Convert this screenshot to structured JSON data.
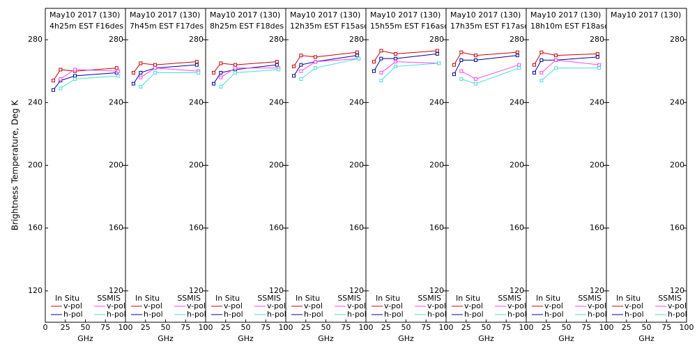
{
  "chart_data": [
    {
      "type": "line",
      "title": "May10 2017 (130)",
      "subtitle": "4h25m EST F16des",
      "ylabel": "Brightness Temperature, Deg K",
      "xlabel": "GHz",
      "xlim": [
        0,
        100
      ],
      "xticks": [
        0,
        25,
        50,
        75,
        100
      ],
      "ylim": [
        100,
        300
      ],
      "yticks": [
        120,
        160,
        200,
        240,
        280
      ],
      "groups": [
        "In Situ",
        "SSMIS"
      ],
      "series": [
        {
          "name": "v-pol",
          "color": "#cc0000",
          "x": [
            10,
            19,
            37,
            89
          ],
          "values": [
            254,
            261,
            260,
            262
          ]
        },
        {
          "name": "h-pol",
          "color": "#000099",
          "x": [
            10,
            19,
            37,
            89
          ],
          "values": [
            248,
            254,
            257,
            259
          ]
        },
        {
          "name": "v-pol",
          "color": "#ff44ff",
          "x": [
            19,
            37,
            91
          ],
          "values": [
            255,
            261,
            260
          ]
        },
        {
          "name": "h-pol",
          "color": "#44dddd",
          "x": [
            19,
            37,
            91
          ],
          "values": [
            249,
            255,
            257
          ]
        }
      ]
    },
    {
      "type": "line",
      "title": "May10 2017 (130)",
      "subtitle": "7h45m EST F17des",
      "xlabel": "GHz",
      "xlim": [
        0,
        100
      ],
      "xticks": [
        0,
        25,
        50,
        75,
        100
      ],
      "ylim": [
        100,
        300
      ],
      "yticks": [
        120,
        160,
        200,
        240,
        280
      ],
      "groups": [
        "In Situ",
        "SSMIS"
      ],
      "series": [
        {
          "name": "v-pol",
          "color": "#cc0000",
          "x": [
            10,
            19,
            37,
            89
          ],
          "values": [
            259,
            265,
            264,
            266
          ]
        },
        {
          "name": "h-pol",
          "color": "#000099",
          "x": [
            10,
            19,
            37,
            89
          ],
          "values": [
            252,
            259,
            262,
            264
          ]
        },
        {
          "name": "v-pol",
          "color": "#ff44ff",
          "x": [
            19,
            37,
            91
          ],
          "values": [
            256,
            262,
            260
          ]
        },
        {
          "name": "h-pol",
          "color": "#44dddd",
          "x": [
            19,
            37,
            91
          ],
          "values": [
            250,
            259,
            259
          ]
        }
      ]
    },
    {
      "type": "line",
      "title": "May10 2017 (130)",
      "subtitle": "8h25m EST F18des",
      "xlabel": "GHz",
      "xlim": [
        0,
        100
      ],
      "xticks": [
        0,
        25,
        50,
        75,
        100
      ],
      "ylim": [
        100,
        300
      ],
      "yticks": [
        120,
        160,
        200,
        240,
        280
      ],
      "groups": [
        "In Situ",
        "SSMIS"
      ],
      "series": [
        {
          "name": "v-pol",
          "color": "#cc0000",
          "x": [
            10,
            19,
            37,
            89
          ],
          "values": [
            259,
            265,
            264,
            266
          ]
        },
        {
          "name": "h-pol",
          "color": "#000099",
          "x": [
            10,
            19,
            37,
            89
          ],
          "values": [
            252,
            259,
            261,
            264
          ]
        },
        {
          "name": "v-pol",
          "color": "#ff44ff",
          "x": [
            19,
            37,
            91
          ],
          "values": [
            256,
            262,
            262
          ]
        },
        {
          "name": "h-pol",
          "color": "#44dddd",
          "x": [
            19,
            37,
            91
          ],
          "values": [
            250,
            259,
            261
          ]
        }
      ]
    },
    {
      "type": "line",
      "title": "May10 2017 (130)",
      "subtitle": "12h35m EST F15asc",
      "xlabel": "GHz",
      "xlim": [
        0,
        100
      ],
      "xticks": [
        0,
        25,
        50,
        75,
        100
      ],
      "ylim": [
        100,
        300
      ],
      "yticks": [
        120,
        160,
        200,
        240,
        280
      ],
      "groups": [
        "In Situ",
        "SSMIS"
      ],
      "series": [
        {
          "name": "v-pol",
          "color": "#cc0000",
          "x": [
            10,
            19,
            37,
            89
          ],
          "values": [
            263,
            270,
            269,
            272
          ]
        },
        {
          "name": "h-pol",
          "color": "#000099",
          "x": [
            10,
            19,
            37,
            89
          ],
          "values": [
            257,
            264,
            266,
            270
          ]
        },
        {
          "name": "v-pol",
          "color": "#ff44ff",
          "x": [
            19,
            37,
            91
          ],
          "values": [
            260,
            266,
            268
          ]
        },
        {
          "name": "h-pol",
          "color": "#44dddd",
          "x": [
            19,
            37,
            91
          ],
          "values": [
            255,
            262,
            268
          ]
        }
      ]
    },
    {
      "type": "line",
      "title": "May10 2017 (130)",
      "subtitle": "15h55m EST F16asc",
      "xlabel": "GHz",
      "xlim": [
        0,
        100
      ],
      "xticks": [
        0,
        25,
        50,
        75,
        100
      ],
      "ylim": [
        100,
        300
      ],
      "yticks": [
        120,
        160,
        200,
        240,
        280
      ],
      "groups": [
        "In Situ",
        "SSMIS"
      ],
      "series": [
        {
          "name": "v-pol",
          "color": "#cc0000",
          "x": [
            10,
            19,
            37,
            89
          ],
          "values": [
            266,
            273,
            271,
            273
          ]
        },
        {
          "name": "h-pol",
          "color": "#000099",
          "x": [
            10,
            19,
            37,
            89
          ],
          "values": [
            260,
            268,
            268,
            271
          ]
        },
        {
          "name": "v-pol",
          "color": "#ff44ff",
          "x": [
            19,
            37,
            91
          ],
          "values": [
            259,
            266,
            265
          ]
        },
        {
          "name": "h-pol",
          "color": "#44dddd",
          "x": [
            19,
            37,
            91
          ],
          "values": [
            254,
            263,
            265
          ]
        }
      ]
    },
    {
      "type": "line",
      "title": "May10 2017 (130)",
      "subtitle": "17h35m EST F17asc",
      "xlabel": "GHz",
      "xlim": [
        0,
        100
      ],
      "xticks": [
        0,
        25,
        50,
        75,
        100
      ],
      "ylim": [
        100,
        300
      ],
      "yticks": [
        120,
        160,
        200,
        240,
        280
      ],
      "groups": [
        "In Situ",
        "SSMIS"
      ],
      "series": [
        {
          "name": "v-pol",
          "color": "#cc0000",
          "x": [
            10,
            19,
            37,
            89
          ],
          "values": [
            264,
            272,
            270,
            272
          ]
        },
        {
          "name": "h-pol",
          "color": "#000099",
          "x": [
            10,
            19,
            37,
            89
          ],
          "values": [
            258,
            267,
            267,
            270
          ]
        },
        {
          "name": "v-pol",
          "color": "#ff44ff",
          "x": [
            19,
            37,
            91
          ],
          "values": [
            260,
            255,
            264
          ]
        },
        {
          "name": "h-pol",
          "color": "#44dddd",
          "x": [
            19,
            37,
            91
          ],
          "values": [
            255,
            252,
            262
          ]
        }
      ]
    },
    {
      "type": "line",
      "title": "May10 2017 (130)",
      "subtitle": "18h10m EST F18asc",
      "xlabel": "GHz",
      "xlim": [
        0,
        100
      ],
      "xticks": [
        0,
        25,
        50,
        75,
        100
      ],
      "ylim": [
        100,
        300
      ],
      "yticks": [
        120,
        160,
        200,
        240,
        280
      ],
      "groups": [
        "In Situ",
        "SSMIS"
      ],
      "series": [
        {
          "name": "v-pol",
          "color": "#cc0000",
          "x": [
            10,
            19,
            37,
            89
          ],
          "values": [
            264,
            272,
            270,
            271
          ]
        },
        {
          "name": "h-pol",
          "color": "#000099",
          "x": [
            10,
            19,
            37,
            89
          ],
          "values": [
            259,
            267,
            267,
            269
          ]
        },
        {
          "name": "v-pol",
          "color": "#ff44ff",
          "x": [
            19,
            37,
            91
          ],
          "values": [
            259,
            267,
            264
          ]
        },
        {
          "name": "h-pol",
          "color": "#44dddd",
          "x": [
            19,
            37,
            91
          ],
          "values": [
            254,
            262,
            262
          ]
        }
      ]
    },
    {
      "type": "line",
      "title": "May10 2017 (130)",
      "xlabel": "GHz",
      "xlim": [
        0,
        100
      ],
      "xticks": [
        0,
        25,
        50,
        75,
        100
      ],
      "ylim": [
        100,
        300
      ],
      "yticks": [
        120,
        160,
        200,
        240,
        280
      ],
      "groups": [
        "In Situ",
        "SSMIS"
      ],
      "series": [
        {
          "name": "v-pol",
          "color": "#cc0000",
          "x": [],
          "values": []
        },
        {
          "name": "h-pol",
          "color": "#000099",
          "x": [],
          "values": []
        },
        {
          "name": "v-pol",
          "color": "#ff44ff",
          "x": [],
          "values": []
        },
        {
          "name": "h-pol",
          "color": "#44dddd",
          "x": [],
          "values": []
        }
      ]
    }
  ]
}
